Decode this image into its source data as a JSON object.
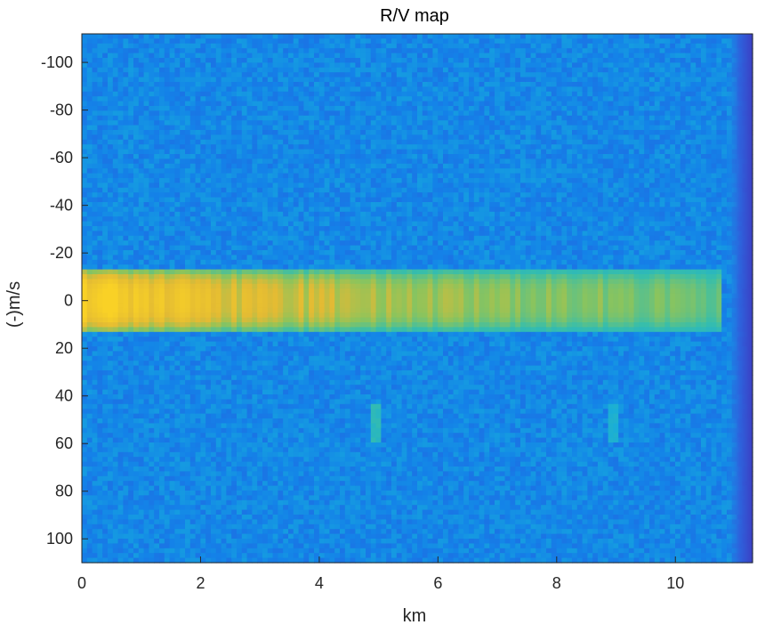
{
  "chart_data": {
    "type": "heatmap",
    "title": "R/V map",
    "xlabel": "km",
    "ylabel": "(-)m/s",
    "xlim": [
      0,
      11.3
    ],
    "ylim": [
      -112,
      110
    ],
    "y_reversed": true,
    "x_ticks": [
      0,
      2,
      4,
      6,
      8,
      10
    ],
    "y_ticks": [
      -100,
      -80,
      -60,
      -40,
      -20,
      0,
      20,
      40,
      60,
      80,
      100
    ],
    "colormap": "parula",
    "colors": {
      "background_low": "#2d6ee8",
      "background_mid": "#1aa0e6",
      "peak": "#f9cf2b",
      "edge_dark": "#3c3fc4"
    },
    "zero_velocity_band": {
      "v_range": [
        -14,
        14
      ],
      "range_km": [
        0,
        10.8
      ],
      "intensity_samples": [
        {
          "km": 0.0,
          "level": 1.0
        },
        {
          "km": 0.5,
          "level": 0.98
        },
        {
          "km": 1.0,
          "level": 0.95
        },
        {
          "km": 1.6,
          "level": 0.9
        },
        {
          "km": 2.1,
          "level": 0.82
        },
        {
          "km": 2.8,
          "level": 0.74
        },
        {
          "km": 3.5,
          "level": 0.7
        },
        {
          "km": 4.2,
          "level": 0.66
        },
        {
          "km": 5.0,
          "level": 0.62
        },
        {
          "km": 6.0,
          "level": 0.58
        },
        {
          "km": 7.0,
          "level": 0.55
        },
        {
          "km": 8.0,
          "level": 0.52
        },
        {
          "km": 9.0,
          "level": 0.5
        },
        {
          "km": 10.0,
          "level": 0.48
        },
        {
          "km": 10.8,
          "level": 0.42
        }
      ]
    },
    "point_targets": [
      {
        "km": 4.95,
        "velocity": 52,
        "level": 0.55
      },
      {
        "km": 8.95,
        "velocity": 52,
        "level": 0.48
      }
    ]
  }
}
